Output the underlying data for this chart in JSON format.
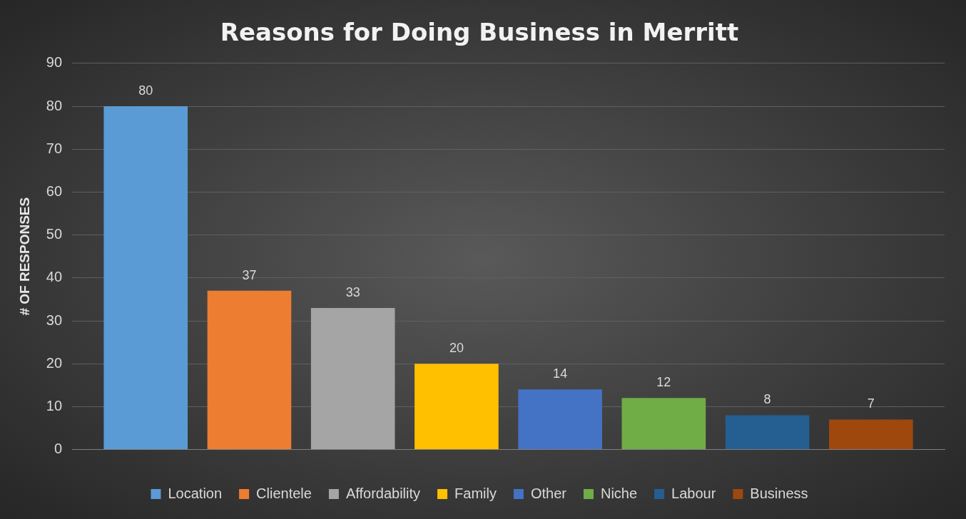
{
  "chart_data": {
    "type": "bar",
    "title": "Reasons for Doing Business in Merritt",
    "ylabel": "# OF RESPONSES",
    "categories": [
      null
    ],
    "series": [
      {
        "name": "Location",
        "color": "#5b9bd5",
        "values": [
          80
        ]
      },
      {
        "name": "Clientele",
        "color": "#ed7d31",
        "values": [
          37
        ]
      },
      {
        "name": "Affordability",
        "color": "#a5a5a5",
        "values": [
          33
        ]
      },
      {
        "name": "Family",
        "color": "#ffc000",
        "values": [
          20
        ]
      },
      {
        "name": "Other",
        "color": "#4472c4",
        "values": [
          14
        ]
      },
      {
        "name": "Niche",
        "color": "#70ad47",
        "values": [
          12
        ]
      },
      {
        "name": "Labour",
        "color": "#255e91",
        "values": [
          8
        ]
      },
      {
        "name": "Business",
        "color": "#9e480e",
        "values": [
          7
        ]
      }
    ],
    "ylim": [
      0,
      90
    ],
    "yticks": [
      0,
      10,
      20,
      30,
      40,
      50,
      60,
      70,
      80,
      90
    ],
    "grid": "y",
    "legend": "bottom",
    "data_labels": true
  }
}
